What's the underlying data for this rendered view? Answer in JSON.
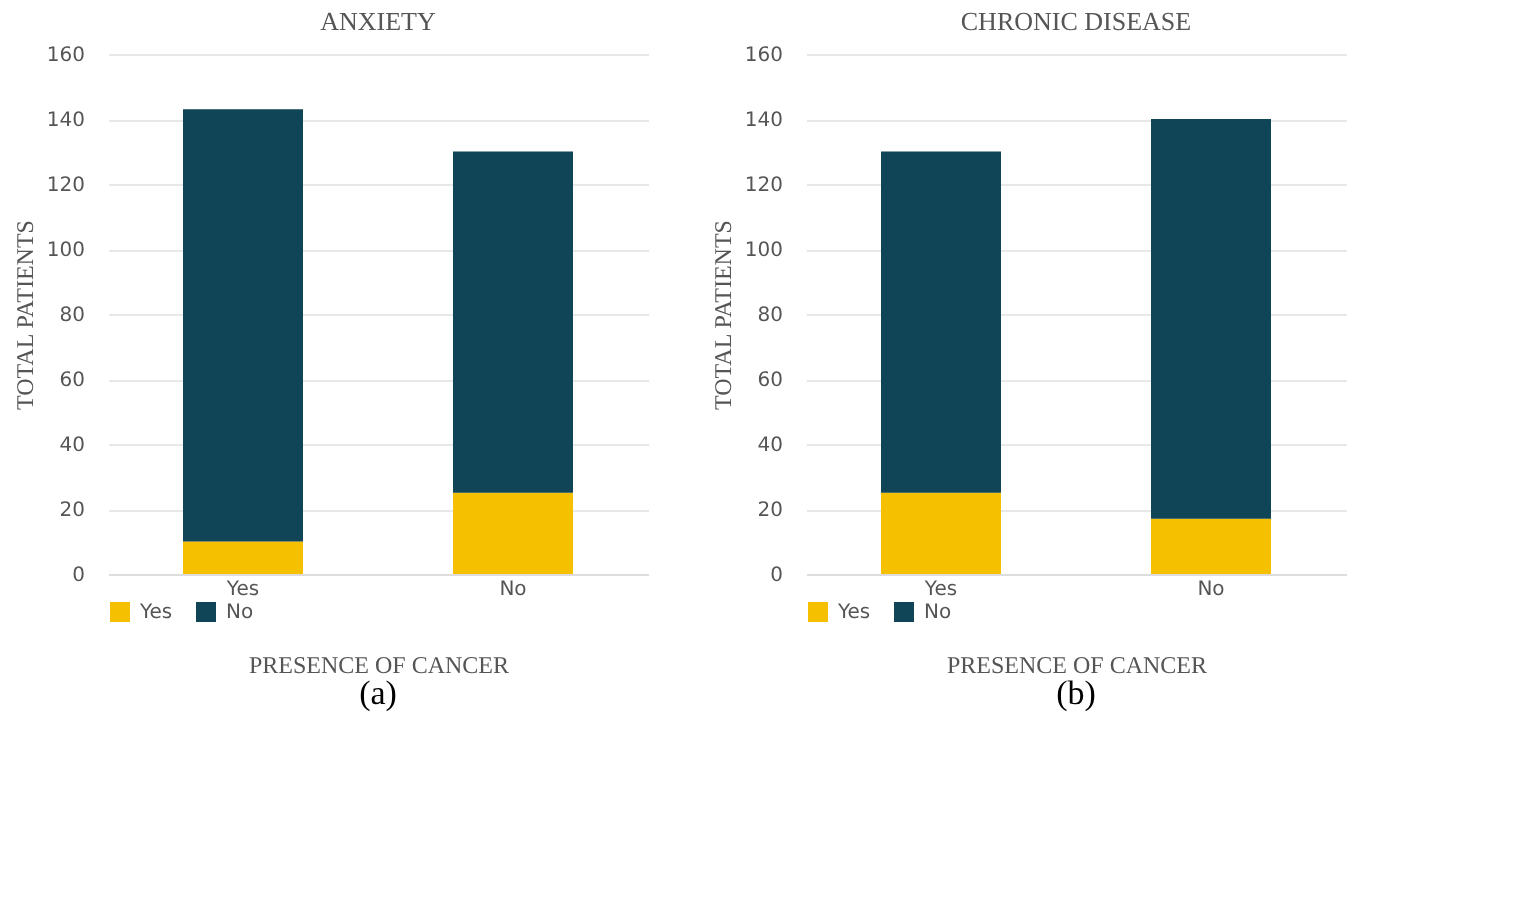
{
  "chart_data": [
    {
      "type": "bar",
      "title": "ANXIETY",
      "xlabel": "PRESENCE OF CANCER",
      "ylabel": "TOTAL PATIENTS",
      "categories": [
        "Yes",
        "No"
      ],
      "stacked": true,
      "series": [
        {
          "name": "Yes",
          "color": "#f5c000",
          "values": [
            10,
            25
          ]
        },
        {
          "name": "No",
          "color": "#0f4556",
          "values": [
            133,
            105
          ]
        }
      ],
      "ylim": [
        0,
        160
      ],
      "yticks": [
        0,
        20,
        40,
        60,
        80,
        100,
        120,
        140,
        160
      ],
      "grid": "y",
      "legend": "bottom",
      "annotations": [
        "(a)"
      ]
    },
    {
      "type": "bar",
      "title": "CHRONIC DISEASE",
      "xlabel": "PRESENCE OF CANCER",
      "ylabel": "TOTAL PATIENTS",
      "categories": [
        "Yes",
        "No"
      ],
      "stacked": true,
      "series": [
        {
          "name": "Yes",
          "color": "#f5c000",
          "values": [
            25,
            17
          ]
        },
        {
          "name": "No",
          "color": "#0f4556",
          "values": [
            105,
            123
          ]
        }
      ],
      "ylim": [
        0,
        160
      ],
      "yticks": [
        0,
        20,
        40,
        60,
        80,
        100,
        120,
        140,
        160
      ],
      "grid": "y",
      "legend": "bottom",
      "annotations": [
        "(b)"
      ]
    }
  ]
}
